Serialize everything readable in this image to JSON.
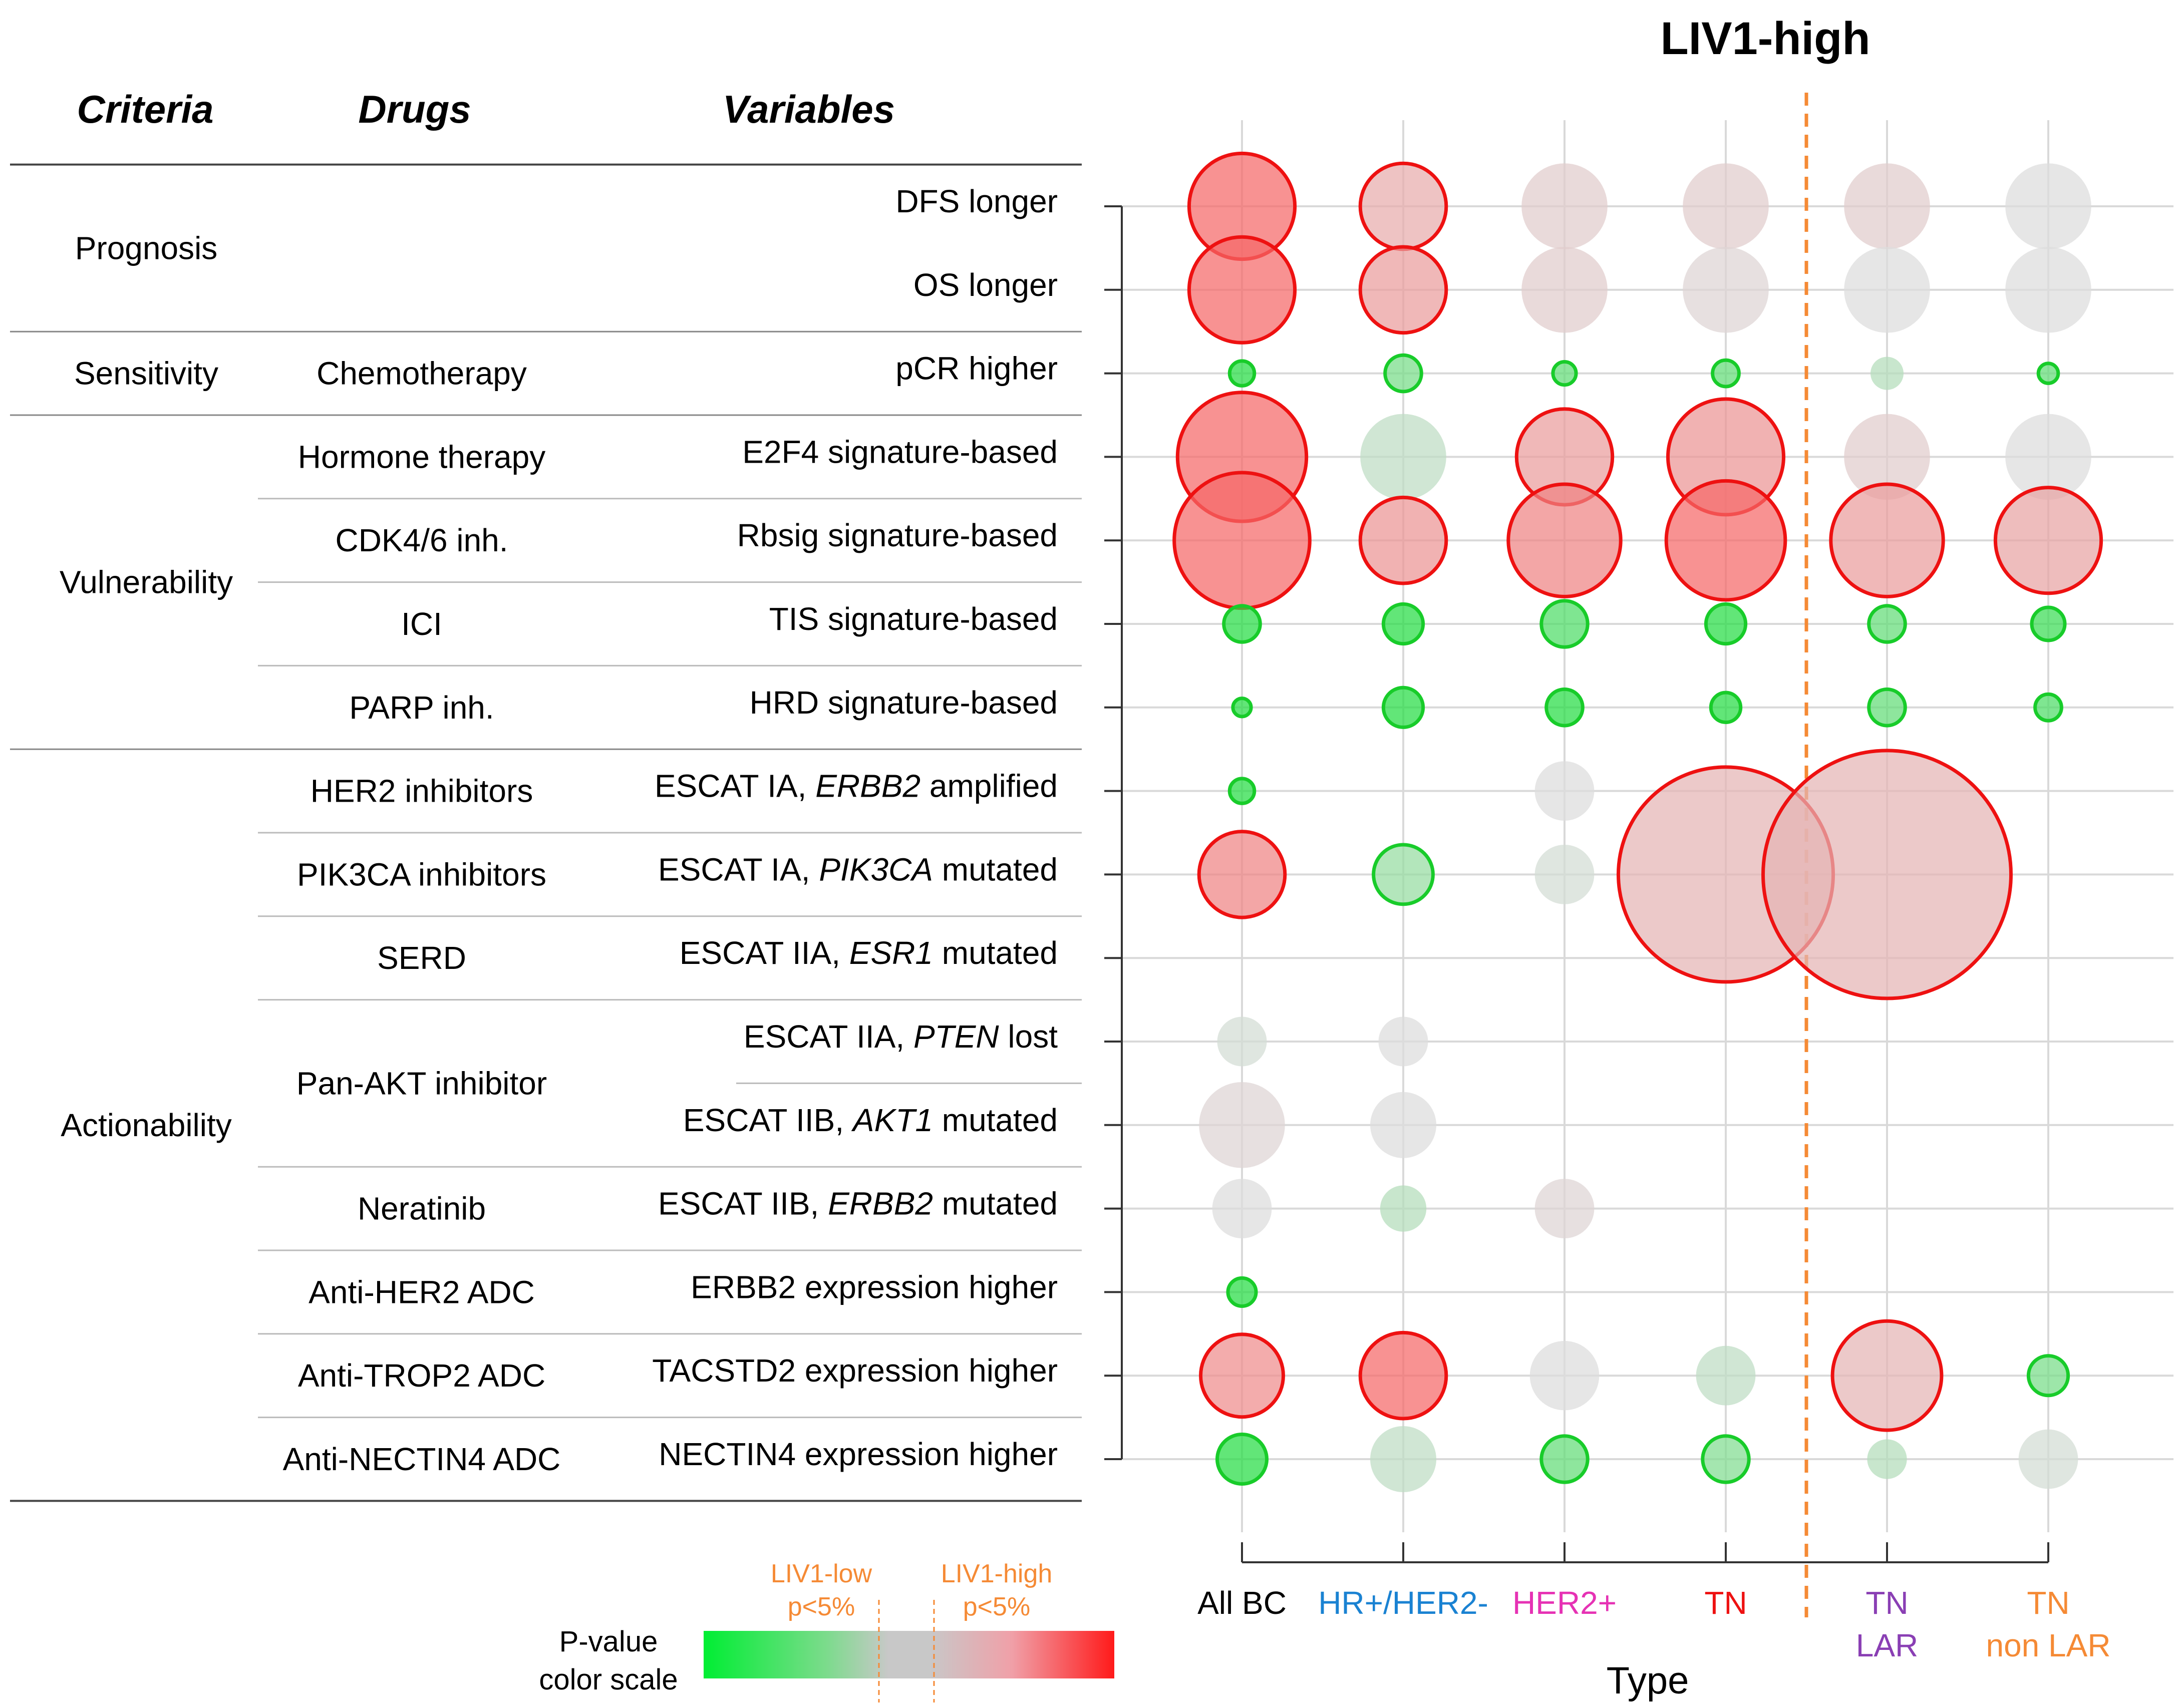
{
  "title": "LIV1-high",
  "headers": {
    "criteria": "Criteria",
    "drugs": "Drugs",
    "variables": "Variables"
  },
  "criteria_groups": [
    {
      "label": "Prognosis",
      "rows": [
        0,
        1
      ]
    },
    {
      "label": "Sensitivity",
      "rows": [
        2,
        2
      ]
    },
    {
      "label": "Vulnerability",
      "rows": [
        3,
        6
      ]
    },
    {
      "label": "Actionability",
      "rows": [
        7,
        15
      ]
    }
  ],
  "drug_groups": [
    {
      "rows": [
        0,
        1
      ],
      "parts": []
    },
    {
      "rows": [
        2,
        2
      ],
      "parts": [
        {
          "text": "Chemotherapy"
        }
      ]
    },
    {
      "rows": [
        3,
        3
      ],
      "parts": [
        {
          "text": "Hormone therapy"
        }
      ]
    },
    {
      "rows": [
        4,
        4
      ],
      "parts": [
        {
          "text": "CDK4/6 inh."
        }
      ]
    },
    {
      "rows": [
        5,
        5
      ],
      "parts": [
        {
          "text": "ICI"
        }
      ]
    },
    {
      "rows": [
        6,
        6
      ],
      "parts": [
        {
          "text": "PARP inh."
        }
      ]
    },
    {
      "rows": [
        7,
        7
      ],
      "parts": [
        {
          "text": "HER2 inhibitors"
        }
      ]
    },
    {
      "rows": [
        8,
        8
      ],
      "parts": [
        {
          "text": "PIK3CA inhibitors"
        }
      ]
    },
    {
      "rows": [
        9,
        9
      ],
      "parts": [
        {
          "text": "SERD"
        }
      ]
    },
    {
      "rows": [
        10,
        11
      ],
      "parts": [
        {
          "text": "Pan-AKT inhibitor"
        }
      ]
    },
    {
      "rows": [
        12,
        12
      ],
      "parts": [
        {
          "text": "Neratinib"
        }
      ]
    },
    {
      "rows": [
        13,
        13
      ],
      "parts": [
        {
          "text": "Anti-HER2 ADC"
        }
      ]
    },
    {
      "rows": [
        14,
        14
      ],
      "parts": [
        {
          "text": "Anti-TROP2 ADC"
        }
      ]
    },
    {
      "rows": [
        15,
        15
      ],
      "parts": [
        {
          "text": "Anti-NECTIN4 ADC"
        }
      ]
    }
  ],
  "variables": [
    [
      {
        "text": "DFS longer"
      }
    ],
    [
      {
        "text": "OS longer"
      }
    ],
    [
      {
        "text": "pCR higher"
      }
    ],
    [
      {
        "text": "E2F4 signature-based"
      }
    ],
    [
      {
        "text": "Rbsig signature-based"
      }
    ],
    [
      {
        "text": "TIS signature-based"
      }
    ],
    [
      {
        "text": "HRD signature-based"
      }
    ],
    [
      {
        "text": "ESCAT IA, "
      },
      {
        "text": "ERBB2",
        "italic": true
      },
      {
        "text": " amplified"
      }
    ],
    [
      {
        "text": "ESCAT IA, "
      },
      {
        "text": "PIK3CA",
        "italic": true
      },
      {
        "text": " mutated"
      }
    ],
    [
      {
        "text": "ESCAT IIA, "
      },
      {
        "text": "ESR1",
        "italic": true
      },
      {
        "text": " mutated"
      }
    ],
    [
      {
        "text": "ESCAT IIA, "
      },
      {
        "text": "PTEN",
        "italic": true
      },
      {
        "text": " lost"
      }
    ],
    [
      {
        "text": "ESCAT IIB, "
      },
      {
        "text": "AKT1",
        "italic": true
      },
      {
        "text": " mutated"
      }
    ],
    [
      {
        "text": "ESCAT IIB, "
      },
      {
        "text": "ERBB2",
        "italic": true
      },
      {
        "text": " mutated"
      }
    ],
    [
      {
        "text": "ERBB2 expression higher"
      }
    ],
    [
      {
        "text": "TACSTD2 expression higher"
      }
    ],
    [
      {
        "text": "NECTIN4 expression higher"
      }
    ]
  ],
  "legend": {
    "title_lines": [
      "P-value",
      "color scale"
    ],
    "low_lines": [
      "LIV1-low",
      "p<5%"
    ],
    "high_lines": [
      "LIV1-high",
      "p<5%"
    ],
    "colors": [
      "#00ee33",
      "#ff1a1a",
      "#c8c8c8"
    ]
  },
  "colors": {
    "text": "#000000",
    "grid": "#d9d9d9",
    "divider": "#f58a35",
    "bubble_red_fill": "#f48f95",
    "bubble_red_stroke": "#ee1111",
    "bubble_green_fill": "#55e07a",
    "bubble_green_stroke": "#18cc2a",
    "bubble_gray_fill": "#d8d8d8"
  },
  "chart_data": {
    "type": "scatter",
    "title": "LIV1-high",
    "xlabel": "Type",
    "categories": [
      {
        "lines": [
          "All  BC"
        ],
        "color": "#000000"
      },
      {
        "lines": [
          "HR+/HER2-"
        ],
        "color": "#1a82d2"
      },
      {
        "lines": [
          "HER2+"
        ],
        "color": "#e632b4"
      },
      {
        "lines": [
          "TN"
        ],
        "color": "#ee1111"
      },
      {
        "lines": [
          "TN",
          "LAR"
        ],
        "color": "#8a3fb4"
      },
      {
        "lines": [
          "TN",
          "non LAR"
        ],
        "color": "#f58a35"
      }
    ],
    "divider_between": [
      3,
      4
    ],
    "size_scale_note": "bubble radius is a relative effect magnitude (0-10 scale)",
    "value_scale_note": "signed color value: -1 = LIV1-low strongest, 0 = non-significant gray, +1 = LIV1-high strongest; outlined = p<5%",
    "points": [
      {
        "row": 0,
        "col": 0,
        "size": 3.2,
        "value": 0.72,
        "sig": true
      },
      {
        "row": 0,
        "col": 1,
        "size": 2.6,
        "value": 0.3,
        "sig": true
      },
      {
        "row": 0,
        "col": 2,
        "size": 2.6,
        "value": 0.1,
        "sig": false
      },
      {
        "row": 0,
        "col": 3,
        "size": 2.6,
        "value": 0.1,
        "sig": false
      },
      {
        "row": 0,
        "col": 4,
        "size": 2.6,
        "value": 0.1,
        "sig": false
      },
      {
        "row": 0,
        "col": 5,
        "size": 2.6,
        "value": 0.0,
        "sig": false
      },
      {
        "row": 1,
        "col": 0,
        "size": 3.2,
        "value": 0.72,
        "sig": true
      },
      {
        "row": 1,
        "col": 1,
        "size": 2.6,
        "value": 0.4,
        "sig": true
      },
      {
        "row": 1,
        "col": 2,
        "size": 2.6,
        "value": 0.1,
        "sig": false
      },
      {
        "row": 1,
        "col": 3,
        "size": 2.6,
        "value": 0.05,
        "sig": false
      },
      {
        "row": 1,
        "col": 4,
        "size": 2.6,
        "value": 0.0,
        "sig": false
      },
      {
        "row": 1,
        "col": 5,
        "size": 2.6,
        "value": 0.0,
        "sig": false
      },
      {
        "row": 2,
        "col": 0,
        "size": 0.75,
        "value": -0.9,
        "sig": true
      },
      {
        "row": 2,
        "col": 1,
        "size": 1.1,
        "value": -0.5,
        "sig": true
      },
      {
        "row": 2,
        "col": 2,
        "size": 0.7,
        "value": -0.6,
        "sig": true
      },
      {
        "row": 2,
        "col": 3,
        "size": 0.8,
        "value": -0.6,
        "sig": true
      },
      {
        "row": 2,
        "col": 4,
        "size": 1.0,
        "value": -0.2,
        "sig": false
      },
      {
        "row": 2,
        "col": 5,
        "size": 0.6,
        "value": -0.6,
        "sig": true
      },
      {
        "row": 3,
        "col": 0,
        "size": 3.9,
        "value": 0.72,
        "sig": true
      },
      {
        "row": 3,
        "col": 1,
        "size": 2.6,
        "value": -0.15,
        "sig": false
      },
      {
        "row": 3,
        "col": 2,
        "size": 2.9,
        "value": 0.4,
        "sig": true
      },
      {
        "row": 3,
        "col": 3,
        "size": 3.5,
        "value": 0.45,
        "sig": true
      },
      {
        "row": 3,
        "col": 4,
        "size": 2.6,
        "value": 0.1,
        "sig": false
      },
      {
        "row": 3,
        "col": 5,
        "size": 2.6,
        "value": 0.0,
        "sig": false
      },
      {
        "row": 4,
        "col": 0,
        "size": 4.1,
        "value": 0.72,
        "sig": true
      },
      {
        "row": 4,
        "col": 1,
        "size": 2.6,
        "value": 0.45,
        "sig": true
      },
      {
        "row": 4,
        "col": 2,
        "size": 3.4,
        "value": 0.55,
        "sig": true
      },
      {
        "row": 4,
        "col": 3,
        "size": 3.6,
        "value": 0.72,
        "sig": true
      },
      {
        "row": 4,
        "col": 4,
        "size": 3.4,
        "value": 0.4,
        "sig": true
      },
      {
        "row": 4,
        "col": 5,
        "size": 3.2,
        "value": 0.35,
        "sig": true
      },
      {
        "row": 5,
        "col": 0,
        "size": 1.1,
        "value": -0.9,
        "sig": true
      },
      {
        "row": 5,
        "col": 1,
        "size": 1.2,
        "value": -0.9,
        "sig": true
      },
      {
        "row": 5,
        "col": 2,
        "size": 1.4,
        "value": -0.7,
        "sig": true
      },
      {
        "row": 5,
        "col": 3,
        "size": 1.2,
        "value": -0.9,
        "sig": true
      },
      {
        "row": 5,
        "col": 4,
        "size": 1.1,
        "value": -0.6,
        "sig": true
      },
      {
        "row": 5,
        "col": 5,
        "size": 1.0,
        "value": -0.8,
        "sig": true
      },
      {
        "row": 6,
        "col": 0,
        "size": 0.55,
        "value": -0.9,
        "sig": true
      },
      {
        "row": 6,
        "col": 1,
        "size": 1.2,
        "value": -0.9,
        "sig": true
      },
      {
        "row": 6,
        "col": 2,
        "size": 1.1,
        "value": -0.9,
        "sig": true
      },
      {
        "row": 6,
        "col": 3,
        "size": 0.9,
        "value": -0.9,
        "sig": true
      },
      {
        "row": 6,
        "col": 4,
        "size": 1.1,
        "value": -0.6,
        "sig": true
      },
      {
        "row": 6,
        "col": 5,
        "size": 0.8,
        "value": -0.7,
        "sig": true
      },
      {
        "row": 7,
        "col": 0,
        "size": 0.75,
        "value": -0.9,
        "sig": true
      },
      {
        "row": 7,
        "col": 2,
        "size": 1.8,
        "value": 0.0,
        "sig": false
      },
      {
        "row": 8,
        "col": 0,
        "size": 2.6,
        "value": 0.55,
        "sig": true
      },
      {
        "row": 8,
        "col": 1,
        "size": 1.8,
        "value": -0.35,
        "sig": true
      },
      {
        "row": 8,
        "col": 2,
        "size": 1.8,
        "value": -0.05,
        "sig": false
      },
      {
        "row": 8,
        "col": 3,
        "size": 6.5,
        "value": 0.25,
        "sig": true
      },
      {
        "row": 8,
        "col": 4,
        "size": 7.5,
        "value": 0.25,
        "sig": true
      },
      {
        "row": 10,
        "col": 0,
        "size": 1.5,
        "value": -0.05,
        "sig": false
      },
      {
        "row": 10,
        "col": 1,
        "size": 1.5,
        "value": 0.0,
        "sig": false
      },
      {
        "row": 11,
        "col": 0,
        "size": 2.6,
        "value": 0.05,
        "sig": false
      },
      {
        "row": 11,
        "col": 1,
        "size": 2.0,
        "value": 0.0,
        "sig": false
      },
      {
        "row": 12,
        "col": 0,
        "size": 1.8,
        "value": 0.0,
        "sig": false
      },
      {
        "row": 12,
        "col": 1,
        "size": 1.4,
        "value": -0.2,
        "sig": false
      },
      {
        "row": 12,
        "col": 2,
        "size": 1.8,
        "value": 0.05,
        "sig": false
      },
      {
        "row": 13,
        "col": 0,
        "size": 0.85,
        "value": -0.9,
        "sig": true
      },
      {
        "row": 13,
        "col": 2,
        "size": 0.0,
        "value": 0.0,
        "sig": false
      },
      {
        "row": 14,
        "col": 0,
        "size": 2.5,
        "value": 0.5,
        "sig": true
      },
      {
        "row": 14,
        "col": 1,
        "size": 2.6,
        "value": 0.72,
        "sig": true
      },
      {
        "row": 14,
        "col": 2,
        "size": 2.1,
        "value": 0.0,
        "sig": false
      },
      {
        "row": 14,
        "col": 3,
        "size": 1.8,
        "value": -0.15,
        "sig": false
      },
      {
        "row": 14,
        "col": 4,
        "size": 3.3,
        "value": 0.25,
        "sig": true
      },
      {
        "row": 14,
        "col": 5,
        "size": 1.2,
        "value": -0.5,
        "sig": true
      },
      {
        "row": 15,
        "col": 0,
        "size": 1.5,
        "value": -0.9,
        "sig": true
      },
      {
        "row": 15,
        "col": 1,
        "size": 2.0,
        "value": -0.15,
        "sig": false
      },
      {
        "row": 15,
        "col": 2,
        "size": 1.4,
        "value": -0.6,
        "sig": true
      },
      {
        "row": 15,
        "col": 3,
        "size": 1.4,
        "value": -0.45,
        "sig": true
      },
      {
        "row": 15,
        "col": 4,
        "size": 1.2,
        "value": -0.2,
        "sig": false
      },
      {
        "row": 15,
        "col": 5,
        "size": 1.8,
        "value": -0.05,
        "sig": false
      }
    ]
  }
}
